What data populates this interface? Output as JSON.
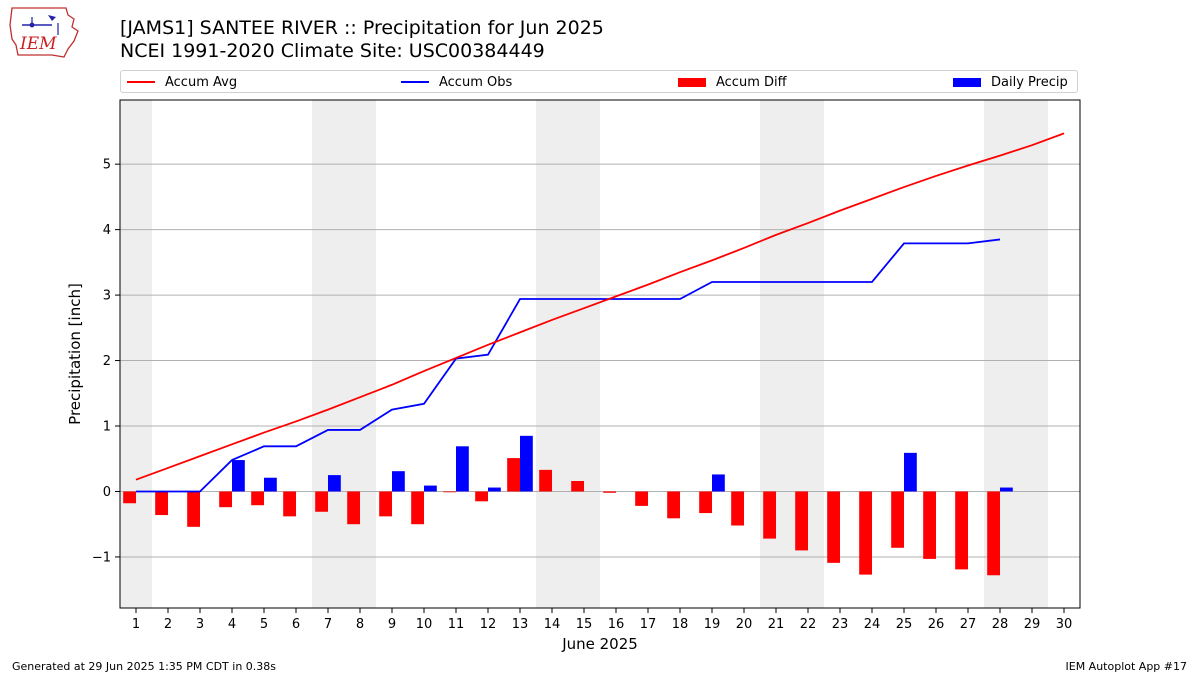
{
  "header": {
    "title": "[JAMS1] SANTEE RIVER :: Precipitation for Jun 2025",
    "subtitle": "NCEI 1991-2020 Climate Site: USC00384449",
    "logo_text": "IEM"
  },
  "legend": {
    "accum_avg": "Accum Avg",
    "accum_obs": "Accum Obs",
    "accum_diff": "Accum Diff",
    "daily_precip": "Daily Precip",
    "placement": "top, above plot"
  },
  "footer": {
    "generated": "Generated at 29 Jun 2025 1:35 PM CDT in 0.38s",
    "app": "IEM Autoplot App #17"
  },
  "colors": {
    "accum_avg": "#ff0000",
    "accum_obs": "#0000ff",
    "accum_diff": "#ff0000",
    "daily_precip": "#0000ff",
    "weekend_shade": "#eeeeee",
    "grid": "#b0b0b0"
  },
  "chart_data": {
    "type": "bar+line",
    "xlabel": "June 2025",
    "ylabel": "Precipitation [inch]",
    "xlim": [
      0.5,
      30.5
    ],
    "ylim": [
      -1.78,
      5.98
    ],
    "x_ticks": [
      1,
      2,
      3,
      4,
      5,
      6,
      7,
      8,
      9,
      10,
      11,
      12,
      13,
      14,
      15,
      16,
      17,
      18,
      19,
      20,
      21,
      22,
      23,
      24,
      25,
      26,
      27,
      28,
      29,
      30
    ],
    "y_ticks": [
      -1,
      0,
      1,
      2,
      3,
      4,
      5
    ],
    "grid": "horizontal",
    "shaded_days": [
      1,
      7,
      8,
      14,
      15,
      21,
      22,
      28,
      29
    ],
    "days": [
      1,
      2,
      3,
      4,
      5,
      6,
      7,
      8,
      9,
      10,
      11,
      12,
      13,
      14,
      15,
      16,
      17,
      18,
      19,
      20,
      21,
      22,
      23,
      24,
      25,
      26,
      27,
      28,
      29,
      30
    ],
    "accum_avg": [
      0.18,
      0.36,
      0.54,
      0.72,
      0.9,
      1.07,
      1.25,
      1.44,
      1.63,
      1.84,
      2.04,
      2.24,
      2.43,
      2.62,
      2.8,
      2.98,
      3.16,
      3.35,
      3.53,
      3.72,
      3.92,
      4.1,
      4.29,
      4.47,
      4.65,
      4.82,
      4.98,
      5.13,
      5.29,
      5.47
    ],
    "accum_obs": [
      0.0,
      0.0,
      0.0,
      0.48,
      0.69,
      0.69,
      0.94,
      0.94,
      1.25,
      1.34,
      2.03,
      2.09,
      2.94,
      2.94,
      2.94,
      2.94,
      2.94,
      2.94,
      3.2,
      3.2,
      3.2,
      3.2,
      3.2,
      3.2,
      3.79,
      3.79,
      3.79,
      3.85
    ],
    "accum_diff": [
      -0.18,
      -0.36,
      -0.54,
      -0.24,
      -0.21,
      -0.38,
      -0.31,
      -0.5,
      -0.38,
      -0.5,
      -0.01,
      -0.15,
      0.51,
      0.33,
      0.16,
      -0.02,
      -0.22,
      -0.41,
      -0.33,
      -0.52,
      -0.72,
      -0.9,
      -1.09,
      -1.27,
      -0.86,
      -1.03,
      -1.19,
      -1.28
    ],
    "daily_precip": [
      0.0,
      0.0,
      0.0,
      0.48,
      0.21,
      0.0,
      0.25,
      0.0,
      0.31,
      0.09,
      0.69,
      0.06,
      0.85,
      0.0,
      0.0,
      0.0,
      0.0,
      0.0,
      0.26,
      0.0,
      0.0,
      0.0,
      0.0,
      0.0,
      0.59,
      0.0,
      0.0,
      0.06
    ]
  }
}
